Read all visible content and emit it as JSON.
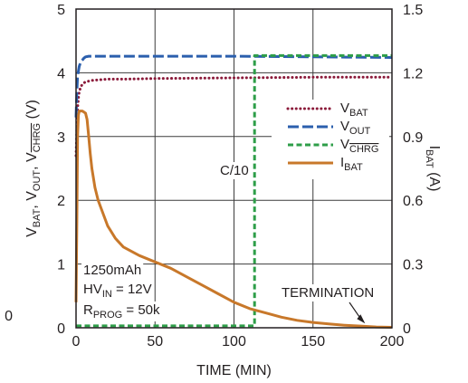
{
  "chart_data": {
    "type": "line",
    "xlabel": "TIME (MIN)",
    "ylabel_left": {
      "parts": [
        {
          "t": "V",
          "s": "base"
        },
        {
          "t": "BAT",
          "s": "sub"
        },
        {
          "t": ", V",
          "s": "base"
        },
        {
          "t": "OUT",
          "s": "sub"
        },
        {
          "t": ", V",
          "s": "base"
        },
        {
          "t": "CHRG",
          "s": "sub-over"
        },
        {
          "t": " (V)",
          "s": "base"
        }
      ]
    },
    "ylabel_right": {
      "parts": [
        {
          "t": "I",
          "s": "base"
        },
        {
          "t": "BAT",
          "s": "sub"
        },
        {
          "t": " (A)",
          "s": "base"
        }
      ]
    },
    "xlim": [
      0,
      200
    ],
    "ylim_left": [
      0,
      5
    ],
    "ylim_right": [
      0,
      1.5
    ],
    "x_ticks": [
      "0",
      "50",
      "100",
      "150",
      "200"
    ],
    "y_left_ticks": [
      "0",
      "1",
      "2",
      "3",
      "4",
      "5"
    ],
    "y_right_ticks": [
      "0",
      "0.3",
      "0.6",
      "0.9",
      "1.2",
      "1.5"
    ],
    "grid": true,
    "legend_position": "right",
    "series": [
      {
        "name": "VBAT",
        "label_parts": [
          {
            "t": "V",
            "s": "base"
          },
          {
            "t": "BAT",
            "s": "sub"
          }
        ],
        "axis": "left",
        "color": "#8b1a3a",
        "dash": "dotted",
        "x": [
          0,
          0.5,
          1,
          1.5,
          2,
          3,
          4,
          5,
          6,
          8,
          10,
          15,
          20,
          30,
          50,
          100,
          150,
          200
        ],
        "y": [
          2.7,
          3.1,
          3.45,
          3.6,
          3.7,
          3.78,
          3.82,
          3.84,
          3.86,
          3.87,
          3.88,
          3.89,
          3.9,
          3.9,
          3.91,
          3.92,
          3.93,
          3.93
        ]
      },
      {
        "name": "VOUT",
        "label_parts": [
          {
            "t": "V",
            "s": "base"
          },
          {
            "t": "OUT",
            "s": "sub"
          }
        ],
        "axis": "left",
        "color": "#2b5fad",
        "dash": "long-dash",
        "x": [
          0,
          0.5,
          1,
          2,
          3,
          4,
          5,
          6,
          8,
          10,
          20,
          50,
          100,
          150,
          200
        ],
        "y": [
          3.3,
          3.7,
          3.95,
          4.1,
          4.17,
          4.2,
          4.23,
          4.25,
          4.26,
          4.26,
          4.26,
          4.26,
          4.26,
          4.25,
          4.24
        ]
      },
      {
        "name": "VCHRG",
        "label_parts": [
          {
            "t": "V",
            "s": "base"
          },
          {
            "t": "CHRG",
            "s": "sub-over"
          }
        ],
        "axis": "left",
        "color": "#2e9e49",
        "dash": "dashed",
        "x": [
          0,
          1,
          2,
          113,
          113,
          200
        ],
        "y": [
          0.03,
          0.03,
          0.03,
          0.03,
          4.27,
          4.27
        ]
      },
      {
        "name": "IBAT",
        "label_parts": [
          {
            "t": "I",
            "s": "base"
          },
          {
            "t": "BAT",
            "s": "sub"
          }
        ],
        "axis": "right",
        "color": "#c8782a",
        "dash": "solid",
        "x": [
          0,
          0.5,
          1,
          1.5,
          2,
          4,
          6,
          7,
          8,
          9,
          10,
          12,
          14,
          16,
          18,
          20,
          25,
          30,
          40,
          50,
          60,
          70,
          80,
          90,
          100,
          110,
          120,
          130,
          140,
          150,
          160,
          170,
          180,
          190,
          200
        ],
        "y": [
          0.12,
          0.5,
          0.9,
          1.0,
          1.02,
          1.02,
          1.01,
          0.98,
          0.9,
          0.82,
          0.75,
          0.66,
          0.6,
          0.56,
          0.52,
          0.48,
          0.42,
          0.38,
          0.34,
          0.31,
          0.28,
          0.24,
          0.2,
          0.16,
          0.12,
          0.09,
          0.07,
          0.05,
          0.035,
          0.025,
          0.018,
          0.012,
          0.008,
          0.004,
          0.002
        ]
      }
    ],
    "annotations": [
      {
        "name": "c10",
        "parts": [
          {
            "t": "C/10",
            "s": "base"
          }
        ]
      },
      {
        "name": "termination",
        "parts": [
          {
            "t": "TERMINATION",
            "s": "base"
          }
        ]
      },
      {
        "name": "cap",
        "parts": [
          {
            "t": "1250mAh",
            "s": "base"
          }
        ]
      },
      {
        "name": "hvin",
        "parts": [
          {
            "t": "HV",
            "s": "base"
          },
          {
            "t": "IN",
            "s": "sub"
          },
          {
            "t": " = 12V",
            "s": "base"
          }
        ]
      },
      {
        "name": "rprog",
        "parts": [
          {
            "t": "R",
            "s": "base"
          },
          {
            "t": "PROG",
            "s": "sub"
          },
          {
            "t": " = 50k",
            "s": "base"
          }
        ]
      }
    ],
    "stray_label": "0"
  }
}
